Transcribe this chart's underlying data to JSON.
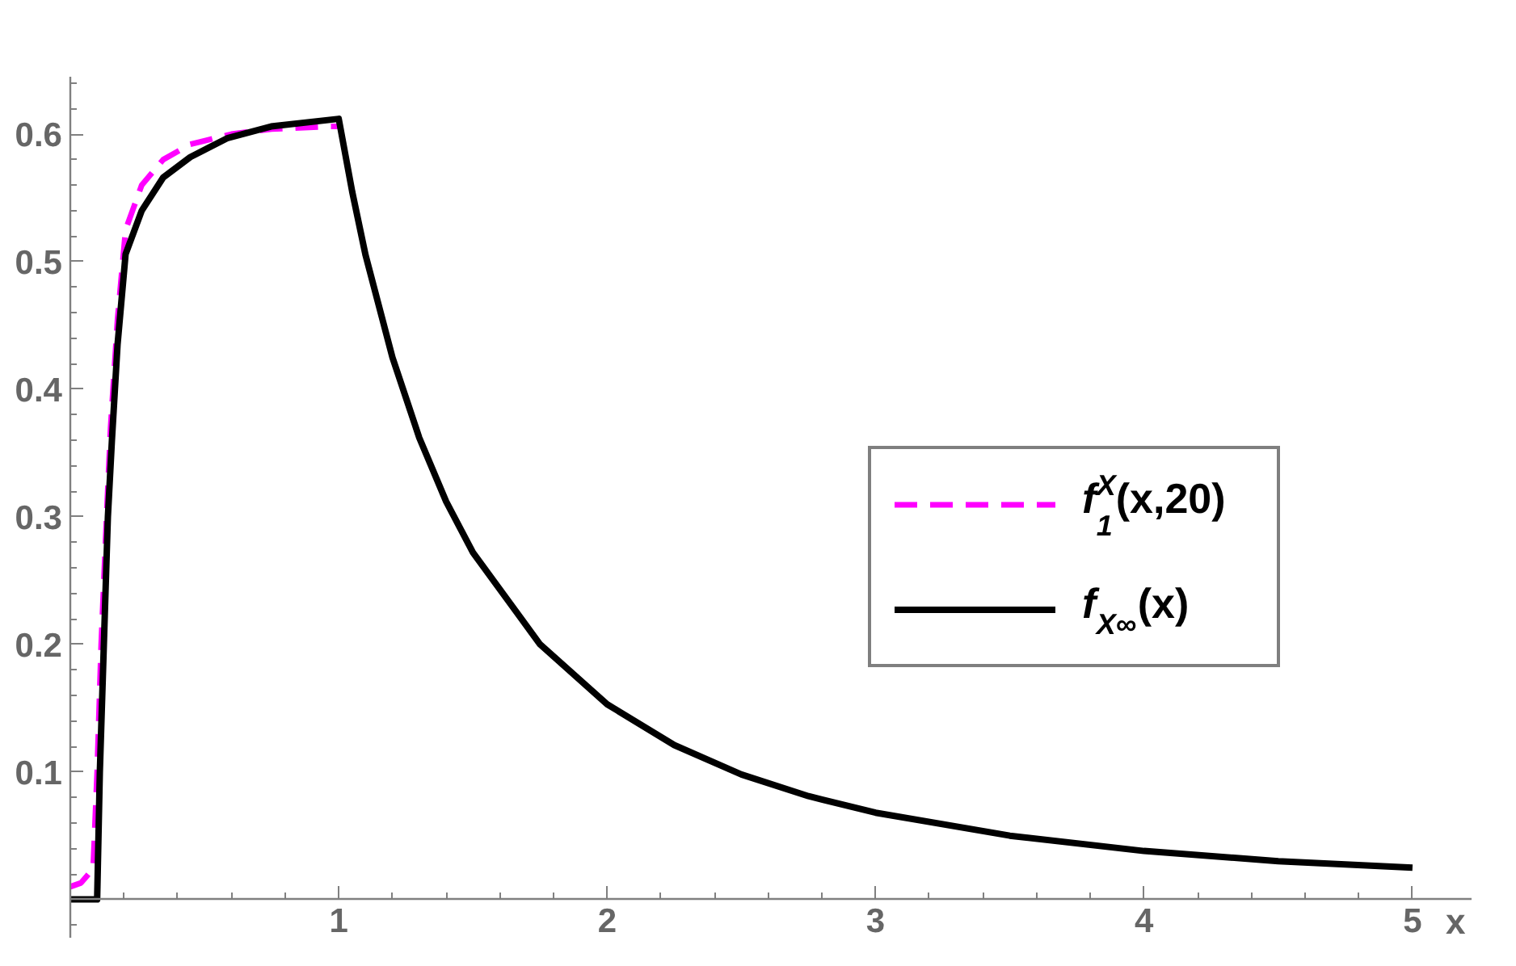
{
  "chart_data": {
    "type": "line",
    "xlabel": "x",
    "legend": "right",
    "grid": false,
    "marker": "none",
    "xlim": [
      0,
      5.22
    ],
    "ylim": [
      -0.03,
      0.645
    ],
    "xticks": [
      {
        "value": 0.2,
        "label": null
      },
      {
        "value": 0.4,
        "label": null
      },
      {
        "value": 0.6,
        "label": null
      },
      {
        "value": 0.8,
        "label": null
      },
      1,
      {
        "value": 1.2,
        "label": null
      },
      {
        "value": 1.4,
        "label": null
      },
      {
        "value": 1.6,
        "label": null
      },
      {
        "value": 1.8,
        "label": null
      },
      2,
      {
        "value": 2.2,
        "label": null
      },
      {
        "value": 2.4,
        "label": null
      },
      {
        "value": 2.6,
        "label": null
      },
      {
        "value": 2.8,
        "label": null
      },
      3,
      {
        "value": 3.2,
        "label": null
      },
      {
        "value": 3.4,
        "label": null
      },
      {
        "value": 3.6,
        "label": null
      },
      {
        "value": 3.8,
        "label": null
      },
      4,
      {
        "value": 4.2,
        "label": null
      },
      {
        "value": 4.4,
        "label": null
      },
      {
        "value": 4.6,
        "label": null
      },
      {
        "value": 4.8,
        "label": null
      },
      5
    ],
    "yticks": [
      {
        "value": -0.02,
        "label": null
      },
      {
        "value": 0.02,
        "label": null
      },
      {
        "value": 0.04,
        "label": null
      },
      {
        "value": 0.06,
        "label": null
      },
      {
        "value": 0.08,
        "label": null
      },
      0.1,
      {
        "value": 0.12,
        "label": null
      },
      {
        "value": 0.14,
        "label": null
      },
      {
        "value": 0.16,
        "label": null
      },
      {
        "value": 0.18,
        "label": null
      },
      0.2,
      {
        "value": 0.22,
        "label": null
      },
      {
        "value": 0.24,
        "label": null
      },
      {
        "value": 0.26,
        "label": null
      },
      {
        "value": 0.28,
        "label": null
      },
      0.3,
      {
        "value": 0.32,
        "label": null
      },
      {
        "value": 0.34,
        "label": null
      },
      {
        "value": 0.36,
        "label": null
      },
      {
        "value": 0.38,
        "label": null
      },
      0.4,
      {
        "value": 0.42,
        "label": null
      },
      {
        "value": 0.44,
        "label": null
      },
      {
        "value": 0.46,
        "label": null
      },
      {
        "value": 0.48,
        "label": null
      },
      0.5,
      {
        "value": 0.52,
        "label": null
      },
      {
        "value": 0.54,
        "label": null
      },
      {
        "value": 0.56,
        "label": null
      },
      {
        "value": 0.58,
        "label": null
      },
      0.6,
      {
        "value": 0.62,
        "label": null
      },
      {
        "value": 0.64,
        "label": null
      }
    ],
    "series": [
      {
        "name": "f$_{1}$$^{X}$(x,20)",
        "color": "#ff00ff",
        "line_style": "dashed",
        "x": [
          0,
          0.04,
          0.085,
          0.1,
          0.115,
          0.135,
          0.15,
          0.176,
          0.206,
          0.266,
          0.346,
          0.447,
          0.6,
          0.75,
          0.97,
          1.0
        ],
        "values": [
          0.01,
          0.013,
          0.024,
          0.1,
          0.2,
          0.3,
          0.37,
          0.455,
          0.525,
          0.56,
          0.58,
          0.592,
          0.6,
          0.604,
          0.606,
          0.606
        ]
      },
      {
        "name": "f$_{X∞}$(x)",
        "color": "#000000",
        "line_style": "solid",
        "x": [
          0,
          0.1,
          0.11,
          0.125,
          0.14,
          0.155,
          0.176,
          0.206,
          0.266,
          0.346,
          0.447,
          0.587,
          0.748,
          1.0,
          1.05,
          1.1,
          1.2,
          1.3,
          1.4,
          1.5,
          1.75,
          2,
          2.25,
          2.5,
          2.75,
          3,
          3.5,
          4,
          4.5,
          5
        ],
        "values": [
          0,
          0,
          0.1,
          0.2,
          0.3,
          0.36,
          0.435,
          0.506,
          0.54,
          0.566,
          0.582,
          0.597,
          0.606,
          0.612,
          0.555,
          0.505,
          0.425,
          0.362,
          0.312,
          0.272,
          0.2,
          0.153,
          0.121,
          0.098,
          0.081,
          0.068,
          0.05,
          0.038,
          0.03,
          0.025
        ]
      }
    ]
  }
}
